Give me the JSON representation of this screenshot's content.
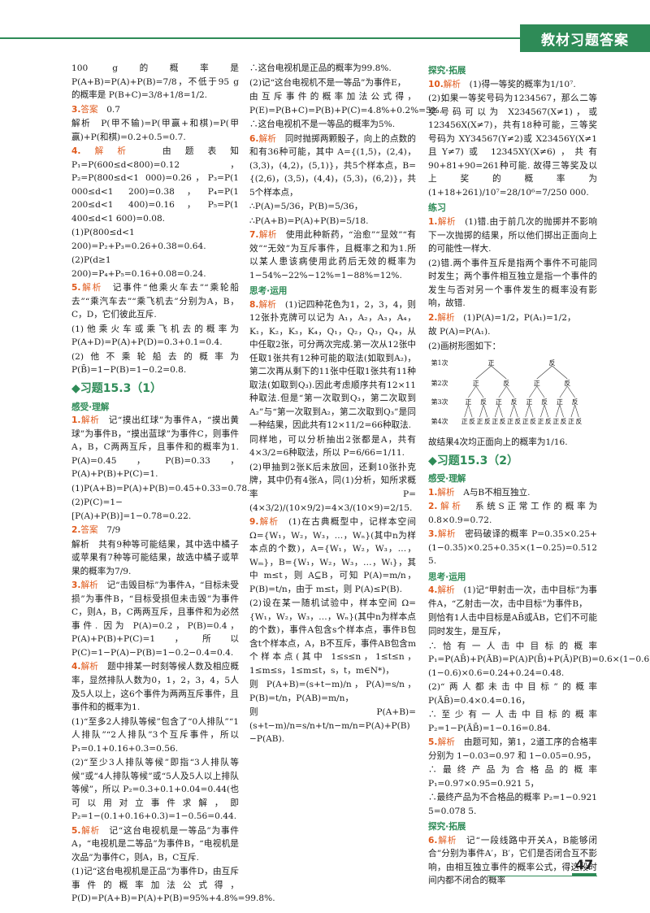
{
  "header": {
    "title": "教材习题答案"
  },
  "page_number": "47",
  "col1": [
    {
      "k": "p",
      "t": "100 g的概率是 P(A+B)=P(A)+P(B)=7/8，不低于95 g的概率是 P(B+C)=3/8+1/8=1/2."
    },
    {
      "k": "q",
      "n": "3.",
      "tag": "答案",
      "t": "0.7"
    },
    {
      "k": "p",
      "t": "解析　P(甲不输)=P(甲赢+和棋)=P(甲赢)+P(和棋)=0.2+0.5=0.7."
    },
    {
      "k": "q",
      "n": "4.",
      "tag": "解析",
      "t": "由题表知 P₁=P(600≤d<800)=0.12，P₂=P(800≤d<1 000)=0.26，P₃=P(1 000≤d<1 200)=0.38，P₄=P(1 200≤d<1 400)=0.16，P₅=P(1 400≤d<1 600)=0.08."
    },
    {
      "k": "p",
      "t": "(1)P(800≤d<1 200)=P₂+P₃=0.26+0.38=0.64."
    },
    {
      "k": "p",
      "t": "(2)P(d≥1 200)=P₄+P₅=0.16+0.08=0.24."
    },
    {
      "k": "q",
      "n": "5.",
      "tag": "解析",
      "t": "记事件“他乘火车去”“乘轮船去”“乘汽车去”“乘飞机去”分别为A，B，C，D，它们彼此互斥."
    },
    {
      "k": "p",
      "t": "(1)他乘火车或乘飞机去的概率为 P(A+D)=P(A)+P(D)=0.3+0.1=0.4."
    },
    {
      "k": "p",
      "t": "(2)他不乘轮船去的概率为 P(B̄)=1−P(B)=1−0.2=0.8."
    },
    {
      "k": "big",
      "t": "◆习题15.3（1）"
    },
    {
      "k": "sec",
      "t": "感受·理解"
    },
    {
      "k": "q",
      "n": "1.",
      "tag": "解析",
      "t": "记“摸出红球”为事件A，“摸出黄球”为事件B，“摸出蓝球”为事件C，则事件A，B，C两两互斥，且事件和的概率为1. P(A)=0.45，P(B)=0.33，P(A)+P(B)+P(C)=1."
    },
    {
      "k": "p",
      "t": "(1)P(A+B)=P(A)+P(B)=0.45+0.33=0.78."
    },
    {
      "k": "p",
      "t": "(2)P(C)=1−[P(A)+P(B)]=1−0.78=0.22."
    },
    {
      "k": "q",
      "n": "2.",
      "tag": "答案",
      "t": "7/9"
    },
    {
      "k": "p",
      "t": "解析　共有9种等可能结果，其中选中橘子或苹果有7种等可能结果，故选中橘子或苹果的概率为7/9."
    },
    {
      "k": "q",
      "n": "3.",
      "tag": "解析",
      "t": "记“击毁目标”为事件A，“目标未受损”为事件B，“目标受损但未击毁”为事件C，则A，B，C两两互斥，且事件和为必然事件. 因为 P(A)=0.2，P(B)=0.4，P(A)+P(B)+P(C)=1，所以 P(C)=1−P(A)−P(B)=1−0.2−0.4=0.4."
    },
    {
      "k": "q",
      "n": "4.",
      "tag": "解析",
      "t": "题中排某一时刻等候人数及相应概率，显然排队人数为0，1，2，3，4，5人及5人以上，这6个事件为两两互斥事件，且事件和的概率为1."
    },
    {
      "k": "p",
      "t": "(1)“至多2人排队等候”包含了“0人排队”“1人排队”“2人排队”3个互斥事件，所以 P₁=0.1+0.16+0.3=0.56."
    },
    {
      "k": "p",
      "t": "(2)“至少3人排队等候”即指“3人排队等候”或“4人排队等候”或“5人及5人以上排队等候”，所以 P₂=0.3+0.1+0.04=0.44(也可以用对立事件求解，即 P₂=1−(0.1+0.16+0.3)=1−0.56=0.44."
    },
    {
      "k": "q",
      "n": "5.",
      "tag": "解析",
      "t": "记“这台电视机是一等品”为事件A，“电视机是二等品”为事件B，“电视机是次品”为事件C，则A，B，C互斥."
    },
    {
      "k": "p",
      "t": "(1)记“这台电视机是正品”为事件D，由互斥事件的概率加法公式得，P(D)=P(A+B)=P(A)+P(B)=95%+4.8%=99.8%."
    }
  ],
  "col2": [
    {
      "k": "p",
      "t": "∴这台电视机是正品的概率为99.8%."
    },
    {
      "k": "p",
      "t": "(2)记“这台电视机不是一等品”为事件E，"
    },
    {
      "k": "p",
      "t": "由互斥事件的概率加法公式得，P(E)=P(B+C)=P(B)+P(C)=4.8%+0.2%=5%."
    },
    {
      "k": "p",
      "t": "∴这台电视机不是一等品的概率为5%."
    },
    {
      "k": "q",
      "n": "6.",
      "tag": "解析",
      "t": "同时抛掷两颗骰子，向上的点数的和有36种可能，其中 A={(1,5)，(2,4)，(3,3)，(4,2)，(5,1)}，共5个样本点，B={(2,6)，(3,5)，(4,4)，(5,3)，(6,2)}，共5个样本点，"
    },
    {
      "k": "p",
      "t": "∴P(A)=5/36，P(B)=5/36，"
    },
    {
      "k": "p",
      "t": "∴P(A+B)=P(A)+P(B)=5/18."
    },
    {
      "k": "q",
      "n": "7.",
      "tag": "解析",
      "t": "使用此种新药，“治愈”“显效”“有效”“无效”为互斥事件，且概率之和为1.所以某人患该病使用此药后无效的概率为 1−54%−22%−12%=1−88%=12%."
    },
    {
      "k": "sec",
      "t": "思考·运用"
    },
    {
      "k": "q",
      "n": "8.",
      "tag": "解析",
      "t": "(1)记四种花色为1，2，3，4，则12张扑克牌可以记为 A₁，A₂，A₃，A₄，K₁，K₂，K₃，K₄，Q₁，Q₂，Q₃，Q₄，从中任取2张，可分两次完成.第一次从12张中任取1张共有12种可能的取法(如取到A₂)，第二次再从剩下的11张中任取1张共有11种取法(如取到Q₃).因此考虑顺序共有12×11种取法.但是“第一次取到Q₃，第二次取到A₂”与“第一次取到A₂，第二次取到Q₃”是同一种结果，因此共有12×11/2=66种取法."
    },
    {
      "k": "p",
      "t": "同样地，可以分析抽出2张都是A，共有4×3/2=6种取法，所以 P=6/66=1/11."
    },
    {
      "k": "p",
      "t": "(2)甲抽到2张K后未放回，还剩10张扑克牌，其中仍有4张A，同(1)分析，知所求概率 P=(4×3/2)/(10×9/2)=4×3/(10×9)=2/15."
    },
    {
      "k": "q",
      "n": "9.",
      "tag": "解析",
      "t": "(1)在古典概型中，记样本空间 Ω={W₁，W₂，W₃，…，Wₙ}(其中n为样本点的个数)，A={W₁，W₂，W₃，…，Wₘ}，B={W₁，W₂，W₃，…，Wₜ}，其中 m≤t，则 A⊆B，可知 P(A)=m/n，P(B)=t/n，由于 m≤t，则 P(A)≤P(B)."
    },
    {
      "k": "p",
      "t": "(2)设在某一随机试验中，样本空间 Ω={W₁，W₂，W₃，…，Wₙ}(其中n为样本点的个数)，事件A包含s个样本点，事件B包含t个样本点，A，B不互斥，事件AB包含m个样本点(其中 1≤s≤n，1≤t≤n，1≤m≤s，1≤m≤t，s，t，m∈N*)，"
    },
    {
      "k": "p",
      "t": "则 P(A+B)=(s+t−m)/n，P(A)=s/n，P(B)=t/n，P(AB)=m/n，"
    },
    {
      "k": "p",
      "t": "则 P(A+B)=(s+t−m)/n=s/n+t/n−m/n=P(A)+P(B)−P(AB)."
    }
  ],
  "col3a": [
    {
      "k": "sec",
      "t": "探究·拓展"
    },
    {
      "k": "q",
      "n": "10.",
      "tag": "解析",
      "t": "(1)得一等奖的概率为1/10⁷."
    },
    {
      "k": "p",
      "t": "(2)如果一等奖号码为1234567，那么二等奖号码可以为 X234567(X≠1)，或123456X(X≠7)，共有18种可能，三等奖号码为 XY34567(Y≠2)或 X23456Y(X≠1且Y≠7)或 12345XY(X≠6)，共有 90+81+90=261种可能. 故得三等奖及以上奖的概率为 (1+18+261)/10⁷=28/10⁶=7/250 000."
    },
    {
      "k": "sec2",
      "t": "练习"
    },
    {
      "k": "q",
      "n": "1.",
      "tag": "解析",
      "t": "(1)错.由于前几次的抛掷并不影响下一次抛掷的结果，所以他们掷出正面向上的可能性一样大."
    },
    {
      "k": "p",
      "t": "(2)错.两个事件互斥是指两个事件不可能同时发生；两个事件相互独立是指一个事件的发生与否对另一个事件发生的概率没有影响，故错."
    },
    {
      "k": "q",
      "n": "2.",
      "tag": "解析",
      "t": "(1)P(A)=1/2，P(A₁)=1/2，"
    },
    {
      "k": "p",
      "t": "故 P(A)=P(A₁)."
    },
    {
      "k": "p",
      "t": "(2)画树形图如下："
    }
  ],
  "tree": {
    "levels": [
      "第1次",
      "第2次",
      "第3次",
      "第4次"
    ],
    "heads": "正",
    "tails": "反"
  },
  "col3b": [
    {
      "k": "p",
      "t": "故结果4次均正面向上的概率为1/16."
    },
    {
      "k": "big",
      "t": "◆习题15.3（2）"
    },
    {
      "k": "sec",
      "t": "感受·理解"
    },
    {
      "k": "q",
      "n": "1.",
      "tag": "解析",
      "t": "A与B不相互独立."
    },
    {
      "k": "q",
      "n": "2.",
      "tag": "解析",
      "t": "系统S正常工作的概率为 0.8×0.9=0.72."
    },
    {
      "k": "q",
      "n": "3.",
      "tag": "解析",
      "t": "密码破译的概率 P=0.35×0.25+(1−0.35)×0.25+0.35×(1−0.25)=0.512 5."
    },
    {
      "k": "sec",
      "t": "思考·运用"
    },
    {
      "k": "q",
      "n": "4.",
      "tag": "解析",
      "t": "(1)记“甲射击一次，击中目标”为事件A，“乙射击一次，击中目标”为事件B，"
    },
    {
      "k": "p",
      "t": "则恰有1人击中目标是AB̄或ĀB，它们不可能同时发生，是互斥，"
    },
    {
      "k": "p",
      "t": "∴恰有一人击中目标的概率 P₁=P(AB̄)+P(ĀB)=P(A)P(B̄)+P(Ā)P(B)=0.6×(1−0.6)+(1−0.6)×0.6=0.24+0.24=0.48."
    },
    {
      "k": "p",
      "t": "(2)“两人都未击中目标”的概率 P(ĀB̄)=0.4×0.4=0.16，"
    },
    {
      "k": "p",
      "t": "∴至少有一人击中目标的概率 P₂=1−P(ĀB̄)=1−0.16=0.84."
    },
    {
      "k": "q",
      "n": "5.",
      "tag": "解析",
      "t": "由题可知，第1，2道工序的合格率分别为 1−0.03=0.97 和 1−0.05=0.95，"
    },
    {
      "k": "p",
      "t": "∴最终产品为合格品的概率 P₁=0.97×0.95=0.921 5，"
    },
    {
      "k": "p",
      "t": "∴最终产品为不合格品的概率 P₂=1−0.921 5=0.078 5."
    },
    {
      "k": "sec",
      "t": "探究·拓展"
    },
    {
      "k": "q",
      "n": "6.",
      "tag": "解析",
      "t": "记“一段线路中开关A，B能够闭合”分别为事件A′，B′，它们是否闭合互不影响，由相互独立事件的概率公式，得这段时间内都不闭合的概率"
    }
  ]
}
